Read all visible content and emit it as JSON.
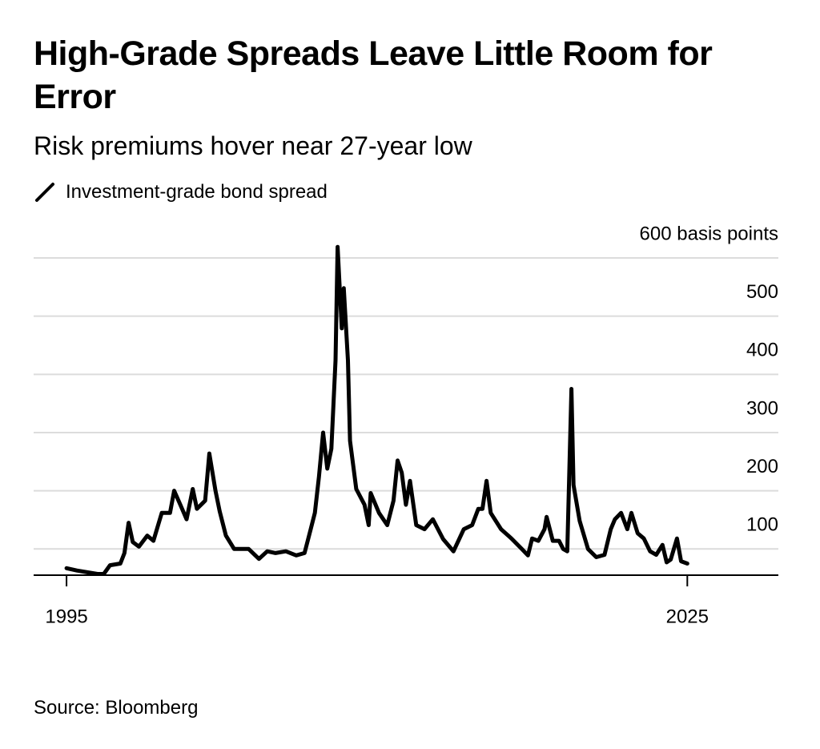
{
  "chart_data": {
    "type": "line",
    "title": "High-Grade Spreads Leave Little Room for Error",
    "subtitle": "Risk premiums hover near 27-year low",
    "source": "Source: Bloomberg",
    "xlim": [
      1993.41,
      2029.4
    ],
    "xticks": [
      1995,
      2025
    ],
    "ylim": [
      55,
      600
    ],
    "yticks": [
      100,
      200,
      300,
      400,
      500,
      {
        "value": 600,
        "label": "600 basis points"
      }
    ],
    "grid": true,
    "series": [
      {
        "name": "Investment-grade bond spread",
        "color": "#000000",
        "x": [
          1995.0,
          1995.5,
          1996.0,
          1996.5,
          1996.8,
          1997.1,
          1997.6,
          1997.8,
          1998.0,
          1998.2,
          1998.5,
          1998.9,
          1999.2,
          1999.6,
          2000.0,
          2000.2,
          2000.5,
          2000.8,
          2001.1,
          2001.3,
          2001.7,
          2001.9,
          2002.2,
          2002.4,
          2002.7,
          2003.1,
          2003.8,
          2004.3,
          2004.7,
          2005.1,
          2005.6,
          2006.1,
          2006.5,
          2006.8,
          2007.0,
          2007.2,
          2007.4,
          2007.6,
          2007.8,
          2008.0,
          2008.1,
          2008.3,
          2008.4,
          2008.6,
          2008.7,
          2009.0,
          2009.4,
          2009.6,
          2009.7,
          2010.1,
          2010.5,
          2010.8,
          2011.0,
          2011.2,
          2011.4,
          2011.6,
          2011.9,
          2012.3,
          2012.7,
          2013.2,
          2013.7,
          2014.2,
          2014.6,
          2014.9,
          2015.1,
          2015.3,
          2015.5,
          2016.0,
          2016.5,
          2017.0,
          2017.3,
          2017.5,
          2017.8,
          2018.1,
          2018.2,
          2018.5,
          2018.8,
          2019.0,
          2019.2,
          2019.4,
          2019.5,
          2019.8,
          2020.2,
          2020.6,
          2021.0,
          2021.3,
          2021.5,
          2021.8,
          2022.1,
          2022.3,
          2022.6,
          2022.9,
          2023.2,
          2023.5,
          2023.8,
          2024.0,
          2024.2,
          2024.5,
          2024.7,
          2025.0
        ],
        "values": [
          67,
          63,
          60,
          57,
          57,
          72,
          75,
          93,
          145,
          112,
          104,
          123,
          114,
          162,
          162,
          200,
          176,
          151,
          203,
          169,
          183,
          264,
          200,
          165,
          123,
          100,
          100,
          83,
          96,
          93,
          96,
          89,
          93,
          134,
          162,
          224,
          300,
          238,
          272,
          424,
          619,
          479,
          548,
          424,
          286,
          203,
          176,
          141,
          196,
          162,
          141,
          183,
          252,
          231,
          176,
          217,
          141,
          134,
          151,
          117,
          96,
          134,
          141,
          169,
          169,
          217,
          162,
          134,
          118,
          100,
          89,
          118,
          114,
          134,
          155,
          114,
          114,
          100,
          96,
          375,
          210,
          148,
          100,
          86,
          90,
          134,
          151,
          162,
          134,
          162,
          127,
          118,
          96,
          90,
          107,
          77,
          82,
          118,
          79,
          75
        ]
      }
    ]
  }
}
